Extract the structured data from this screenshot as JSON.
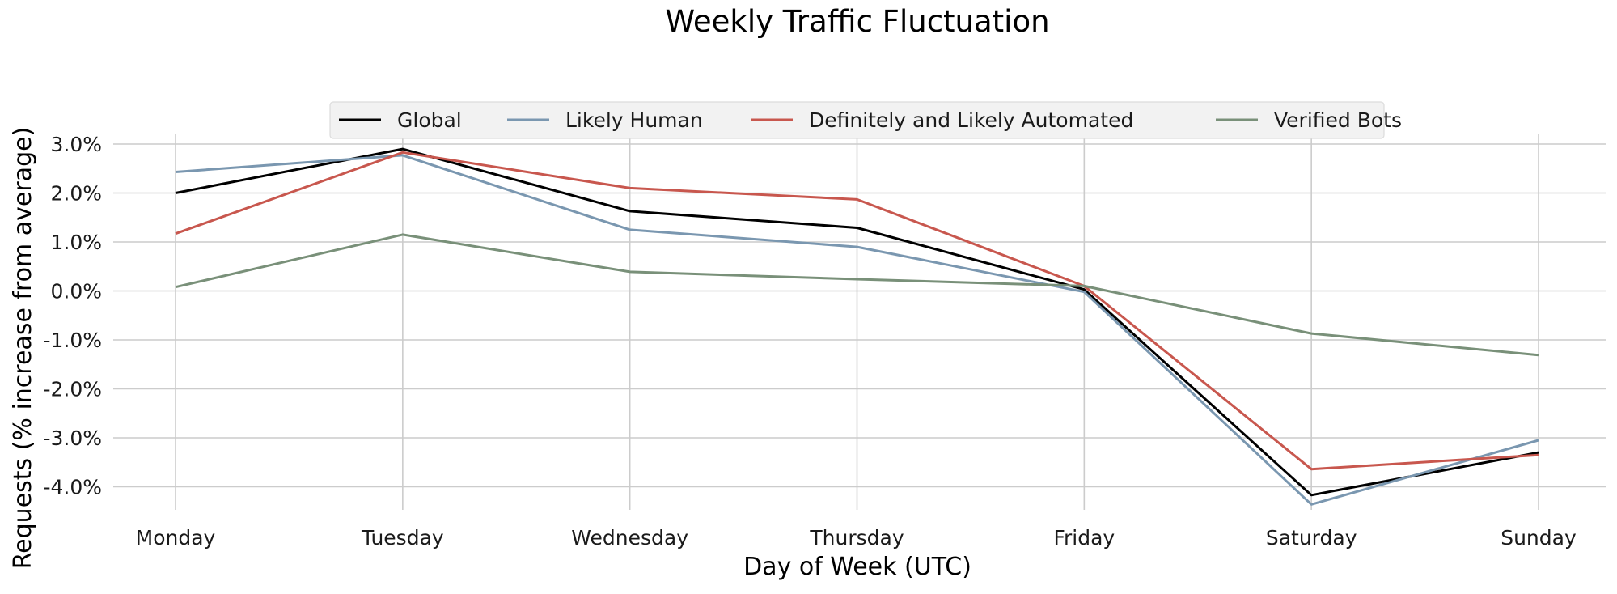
{
  "chart_data": {
    "type": "line",
    "title": "Weekly Traffic Fluctuation",
    "xlabel": "Day of Week (UTC)",
    "ylabel": "Requests (% increase from average)",
    "categories": [
      "Monday",
      "Tuesday",
      "Wednesday",
      "Thursday",
      "Friday",
      "Saturday",
      "Sunday"
    ],
    "yticks": [
      3.0,
      2.0,
      1.0,
      0.0,
      -1.0,
      -2.0,
      -3.0,
      -4.0
    ],
    "ytick_labels": [
      "3.0%",
      "2.0%",
      "1.0%",
      "0.0%",
      "-1.0%",
      "-2.0%",
      "-3.0%",
      "-4.0%"
    ],
    "ylim": [
      -4.6,
      3.2
    ],
    "grid": true,
    "legend_position": "top-center",
    "series": [
      {
        "name": "Global",
        "color": "#000000",
        "values": [
          2.0,
          2.9,
          1.63,
          1.29,
          0.03,
          -4.17,
          -3.3
        ]
      },
      {
        "name": "Likely Human",
        "color": "#7a97b0",
        "values": [
          2.43,
          2.77,
          1.25,
          0.9,
          -0.02,
          -4.36,
          -3.05
        ]
      },
      {
        "name": "Definitely and Likely Automated",
        "color": "#c8574e",
        "values": [
          1.17,
          2.83,
          2.1,
          1.87,
          0.1,
          -3.64,
          -3.35
        ]
      },
      {
        "name": "Verified Bots",
        "color": "#799079",
        "values": [
          0.08,
          1.15,
          0.39,
          0.24,
          0.1,
          -0.87,
          -1.31
        ]
      }
    ]
  }
}
